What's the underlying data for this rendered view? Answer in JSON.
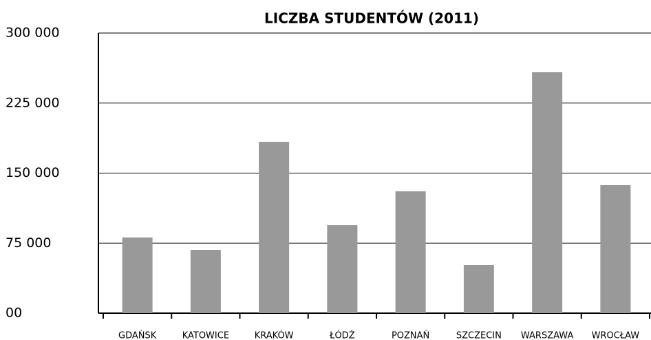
{
  "chart_data": {
    "type": "bar",
    "title": "LICZBA STUDENTÓW (2011)",
    "categories": [
      "GDAŃSK",
      "KATOWICE",
      "KRAKÓW",
      "ŁÓDŹ",
      "POZNAŃ",
      "SZCZECIN",
      "WARSZAWA",
      "WROCŁAW"
    ],
    "values": [
      81000,
      67800,
      183500,
      94300,
      130500,
      51600,
      258000,
      137100
    ],
    "color": "#999999",
    "ylim": [
      0,
      300000
    ],
    "yticks": [
      {
        "value": 0,
        "label": "00"
      },
      {
        "value": 75000,
        "label": "75 000"
      },
      {
        "value": 150000,
        "label": "150 000"
      },
      {
        "value": 225000,
        "label": "225 000"
      },
      {
        "value": 300000,
        "label": "300 000"
      }
    ],
    "grid": true
  }
}
